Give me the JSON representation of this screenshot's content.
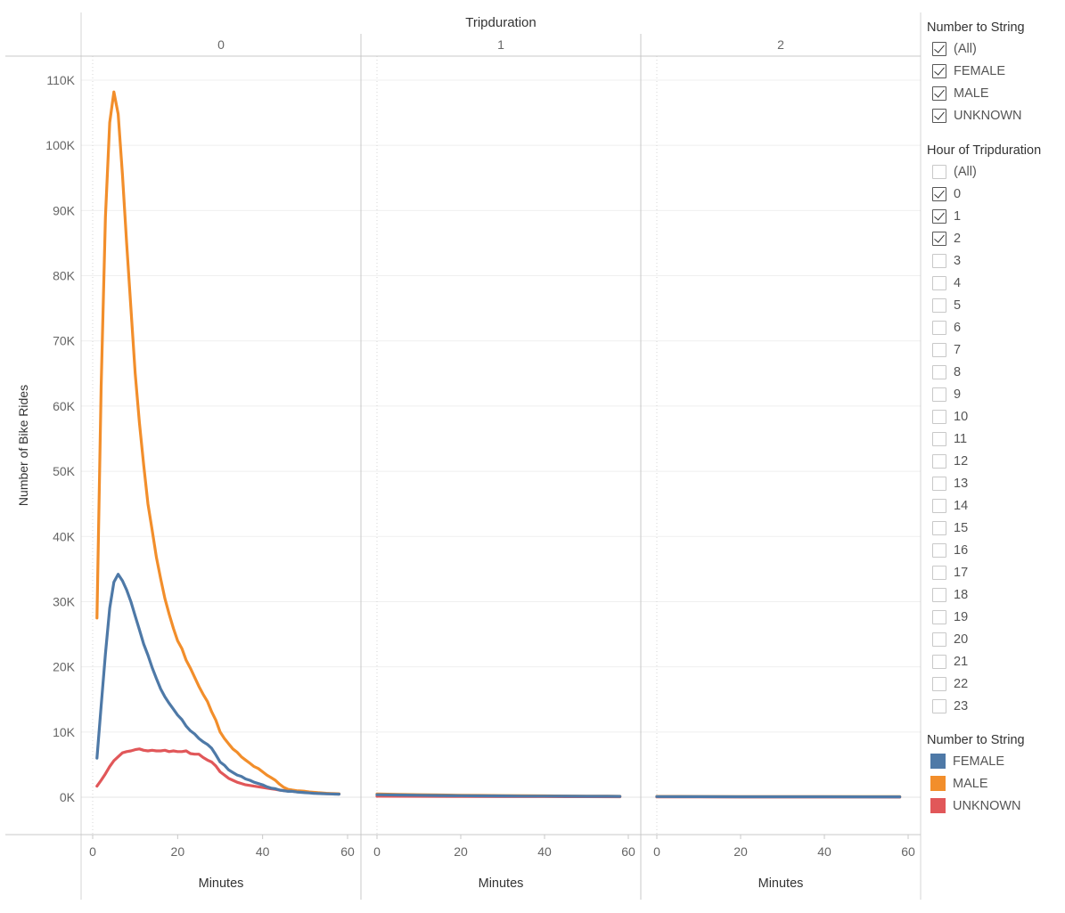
{
  "chart_data": {
    "type": "line",
    "column_header": "Tripduration",
    "panels": [
      "0",
      "1",
      "2"
    ],
    "xlabel": "Minutes",
    "ylabel": "Number of Bike Rides",
    "xticks": [
      0,
      20,
      40,
      60
    ],
    "xlim": [
      0,
      60
    ],
    "yticks": [
      0,
      10000,
      20000,
      30000,
      40000,
      50000,
      60000,
      70000,
      80000,
      90000,
      100000,
      110000
    ],
    "ytick_labels": [
      "0K",
      "10K",
      "20K",
      "30K",
      "40K",
      "50K",
      "60K",
      "70K",
      "80K",
      "90K",
      "100K",
      "110K"
    ],
    "ylim": [
      -5600,
      114000
    ],
    "grid": true,
    "series": [
      {
        "name": "FEMALE",
        "color": "#4e79a7",
        "panels": [
          {
            "x": [
              1,
              2,
              3,
              4,
              5,
              6,
              7,
              8,
              9,
              10,
              11,
              12,
              13,
              14,
              15,
              16,
              17,
              18,
              19,
              20,
              21,
              22,
              23,
              24,
              25,
              26,
              27,
              28,
              29,
              30,
              31,
              32,
              33,
              34,
              35,
              36,
              37,
              38,
              39,
              40,
              41,
              42,
              43,
              44,
              45,
              46,
              47,
              48,
              49,
              50,
              51,
              52,
              53,
              54,
              55,
              56,
              57,
              58
            ],
            "y": [
              6000,
              14000,
              22000,
              29000,
              33000,
              34200,
              33200,
              31800,
              30000,
              27800,
              25700,
              23500,
              21800,
              19900,
              18200,
              16600,
              15400,
              14400,
              13500,
              12600,
              11900,
              10900,
              10200,
              9700,
              9000,
              8500,
              8100,
              7500,
              6500,
              5400,
              4900,
              4200,
              3800,
              3400,
              3200,
              2800,
              2600,
              2300,
              2100,
              1900,
              1600,
              1400,
              1300,
              1100,
              1000,
              900,
              900,
              800,
              750,
              700,
              650,
              600,
              580,
              550,
              520,
              500,
              480,
              460
            ]
          },
          {
            "x": [
              0,
              5,
              10,
              15,
              20,
              25,
              30,
              35,
              40,
              45,
              50,
              55,
              58
            ],
            "y": [
              380,
              340,
              300,
              260,
              230,
              210,
              190,
              170,
              160,
              150,
              140,
              130,
              120
            ]
          },
          {
            "x": [
              0,
              10,
              20,
              30,
              40,
              50,
              58
            ],
            "y": [
              90,
              80,
              75,
              70,
              65,
              60,
              55
            ]
          }
        ]
      },
      {
        "name": "MALE",
        "color": "#f28e2b",
        "panels": [
          {
            "x": [
              1,
              2,
              3,
              4,
              5,
              6,
              7,
              8,
              9,
              10,
              11,
              12,
              13,
              14,
              15,
              16,
              17,
              18,
              19,
              20,
              21,
              22,
              23,
              24,
              25,
              26,
              27,
              28,
              29,
              30,
              31,
              32,
              33,
              34,
              35,
              36,
              37,
              38,
              39,
              40,
              41,
              42,
              43,
              44,
              45,
              46,
              47,
              48,
              49,
              50,
              51,
              52,
              53,
              54,
              55,
              56,
              57,
              58
            ],
            "y": [
              27500,
              63000,
              89000,
              103500,
              108200,
              104800,
              95500,
              85000,
              75000,
              65000,
              57500,
              51000,
              45000,
              41000,
              36800,
              33500,
              30500,
              28100,
              25900,
              24000,
              22800,
              21000,
              19800,
              18400,
              17000,
              15800,
              14700,
              13100,
              11800,
              10000,
              9000,
              8200,
              7400,
              6900,
              6200,
              5700,
              5200,
              4700,
              4400,
              3900,
              3400,
              3000,
              2600,
              2000,
              1500,
              1200,
              1100,
              1000,
              950,
              900,
              800,
              750,
              700,
              650,
              600,
              580,
              550,
              520
            ]
          },
          {
            "x": [
              0,
              5,
              10,
              15,
              20,
              25,
              30,
              35,
              40,
              45,
              50,
              55,
              58
            ],
            "y": [
              500,
              420,
              380,
              340,
              300,
              280,
              250,
              220,
              200,
              180,
              160,
              150,
              140
            ]
          },
          {
            "x": [
              0,
              10,
              20,
              30,
              40,
              50,
              58
            ],
            "y": [
              120,
              110,
              100,
              95,
              90,
              85,
              80
            ]
          }
        ]
      },
      {
        "name": "UNKNOWN",
        "color": "#e15759",
        "panels": [
          {
            "x": [
              1,
              2,
              3,
              4,
              5,
              6,
              7,
              8,
              9,
              10,
              11,
              12,
              13,
              14,
              15,
              16,
              17,
              18,
              19,
              20,
              21,
              22,
              23,
              24,
              25,
              26,
              27,
              28,
              29,
              30,
              31,
              32,
              33,
              34,
              35,
              36,
              37,
              38,
              39,
              40,
              41,
              42,
              43,
              44,
              45,
              46,
              47,
              48,
              49,
              50,
              51,
              52,
              53,
              54,
              55,
              56,
              57,
              58
            ],
            "y": [
              1700,
              2600,
              3600,
              4700,
              5600,
              6200,
              6800,
              7000,
              7100,
              7300,
              7400,
              7200,
              7100,
              7200,
              7100,
              7100,
              7200,
              7000,
              7100,
              7000,
              7000,
              7100,
              6700,
              6600,
              6600,
              6100,
              5700,
              5400,
              4800,
              3900,
              3400,
              2900,
              2600,
              2300,
              2100,
              1900,
              1800,
              1700,
              1600,
              1500,
              1400,
              1300,
              1200,
              1100,
              1000,
              950,
              900,
              850,
              800,
              750,
              700,
              650,
              600,
              580,
              550,
              520,
              500,
              480
            ]
          },
          {
            "x": [
              0,
              10,
              20,
              30,
              40,
              50,
              58
            ],
            "y": [
              150,
              130,
              110,
              100,
              90,
              80,
              70
            ]
          },
          {
            "x": [
              0,
              10,
              20,
              30,
              40,
              50,
              58
            ],
            "y": [
              40,
              35,
              30,
              28,
              25,
              22,
              20
            ]
          }
        ]
      }
    ]
  },
  "filters": [
    {
      "title": "Number to String",
      "items": [
        {
          "label": "(All)",
          "checked": true
        },
        {
          "label": "FEMALE",
          "checked": true
        },
        {
          "label": "MALE",
          "checked": true
        },
        {
          "label": "UNKNOWN",
          "checked": true
        }
      ]
    },
    {
      "title": "Hour of Tripduration",
      "items": [
        {
          "label": "(All)",
          "checked": false
        },
        {
          "label": "0",
          "checked": true
        },
        {
          "label": "1",
          "checked": true
        },
        {
          "label": "2",
          "checked": true
        },
        {
          "label": "3",
          "checked": false
        },
        {
          "label": "4",
          "checked": false
        },
        {
          "label": "5",
          "checked": false
        },
        {
          "label": "6",
          "checked": false
        },
        {
          "label": "7",
          "checked": false
        },
        {
          "label": "8",
          "checked": false
        },
        {
          "label": "9",
          "checked": false
        },
        {
          "label": "10",
          "checked": false
        },
        {
          "label": "11",
          "checked": false
        },
        {
          "label": "12",
          "checked": false
        },
        {
          "label": "13",
          "checked": false
        },
        {
          "label": "14",
          "checked": false
        },
        {
          "label": "15",
          "checked": false
        },
        {
          "label": "16",
          "checked": false
        },
        {
          "label": "17",
          "checked": false
        },
        {
          "label": "18",
          "checked": false
        },
        {
          "label": "19",
          "checked": false
        },
        {
          "label": "20",
          "checked": false
        },
        {
          "label": "21",
          "checked": false
        },
        {
          "label": "22",
          "checked": false
        },
        {
          "label": "23",
          "checked": false
        }
      ]
    }
  ],
  "legend": {
    "title": "Number to String",
    "items": [
      {
        "label": "FEMALE",
        "color": "#4e79a7"
      },
      {
        "label": "MALE",
        "color": "#f28e2b"
      },
      {
        "label": "UNKNOWN",
        "color": "#e15759"
      }
    ]
  }
}
